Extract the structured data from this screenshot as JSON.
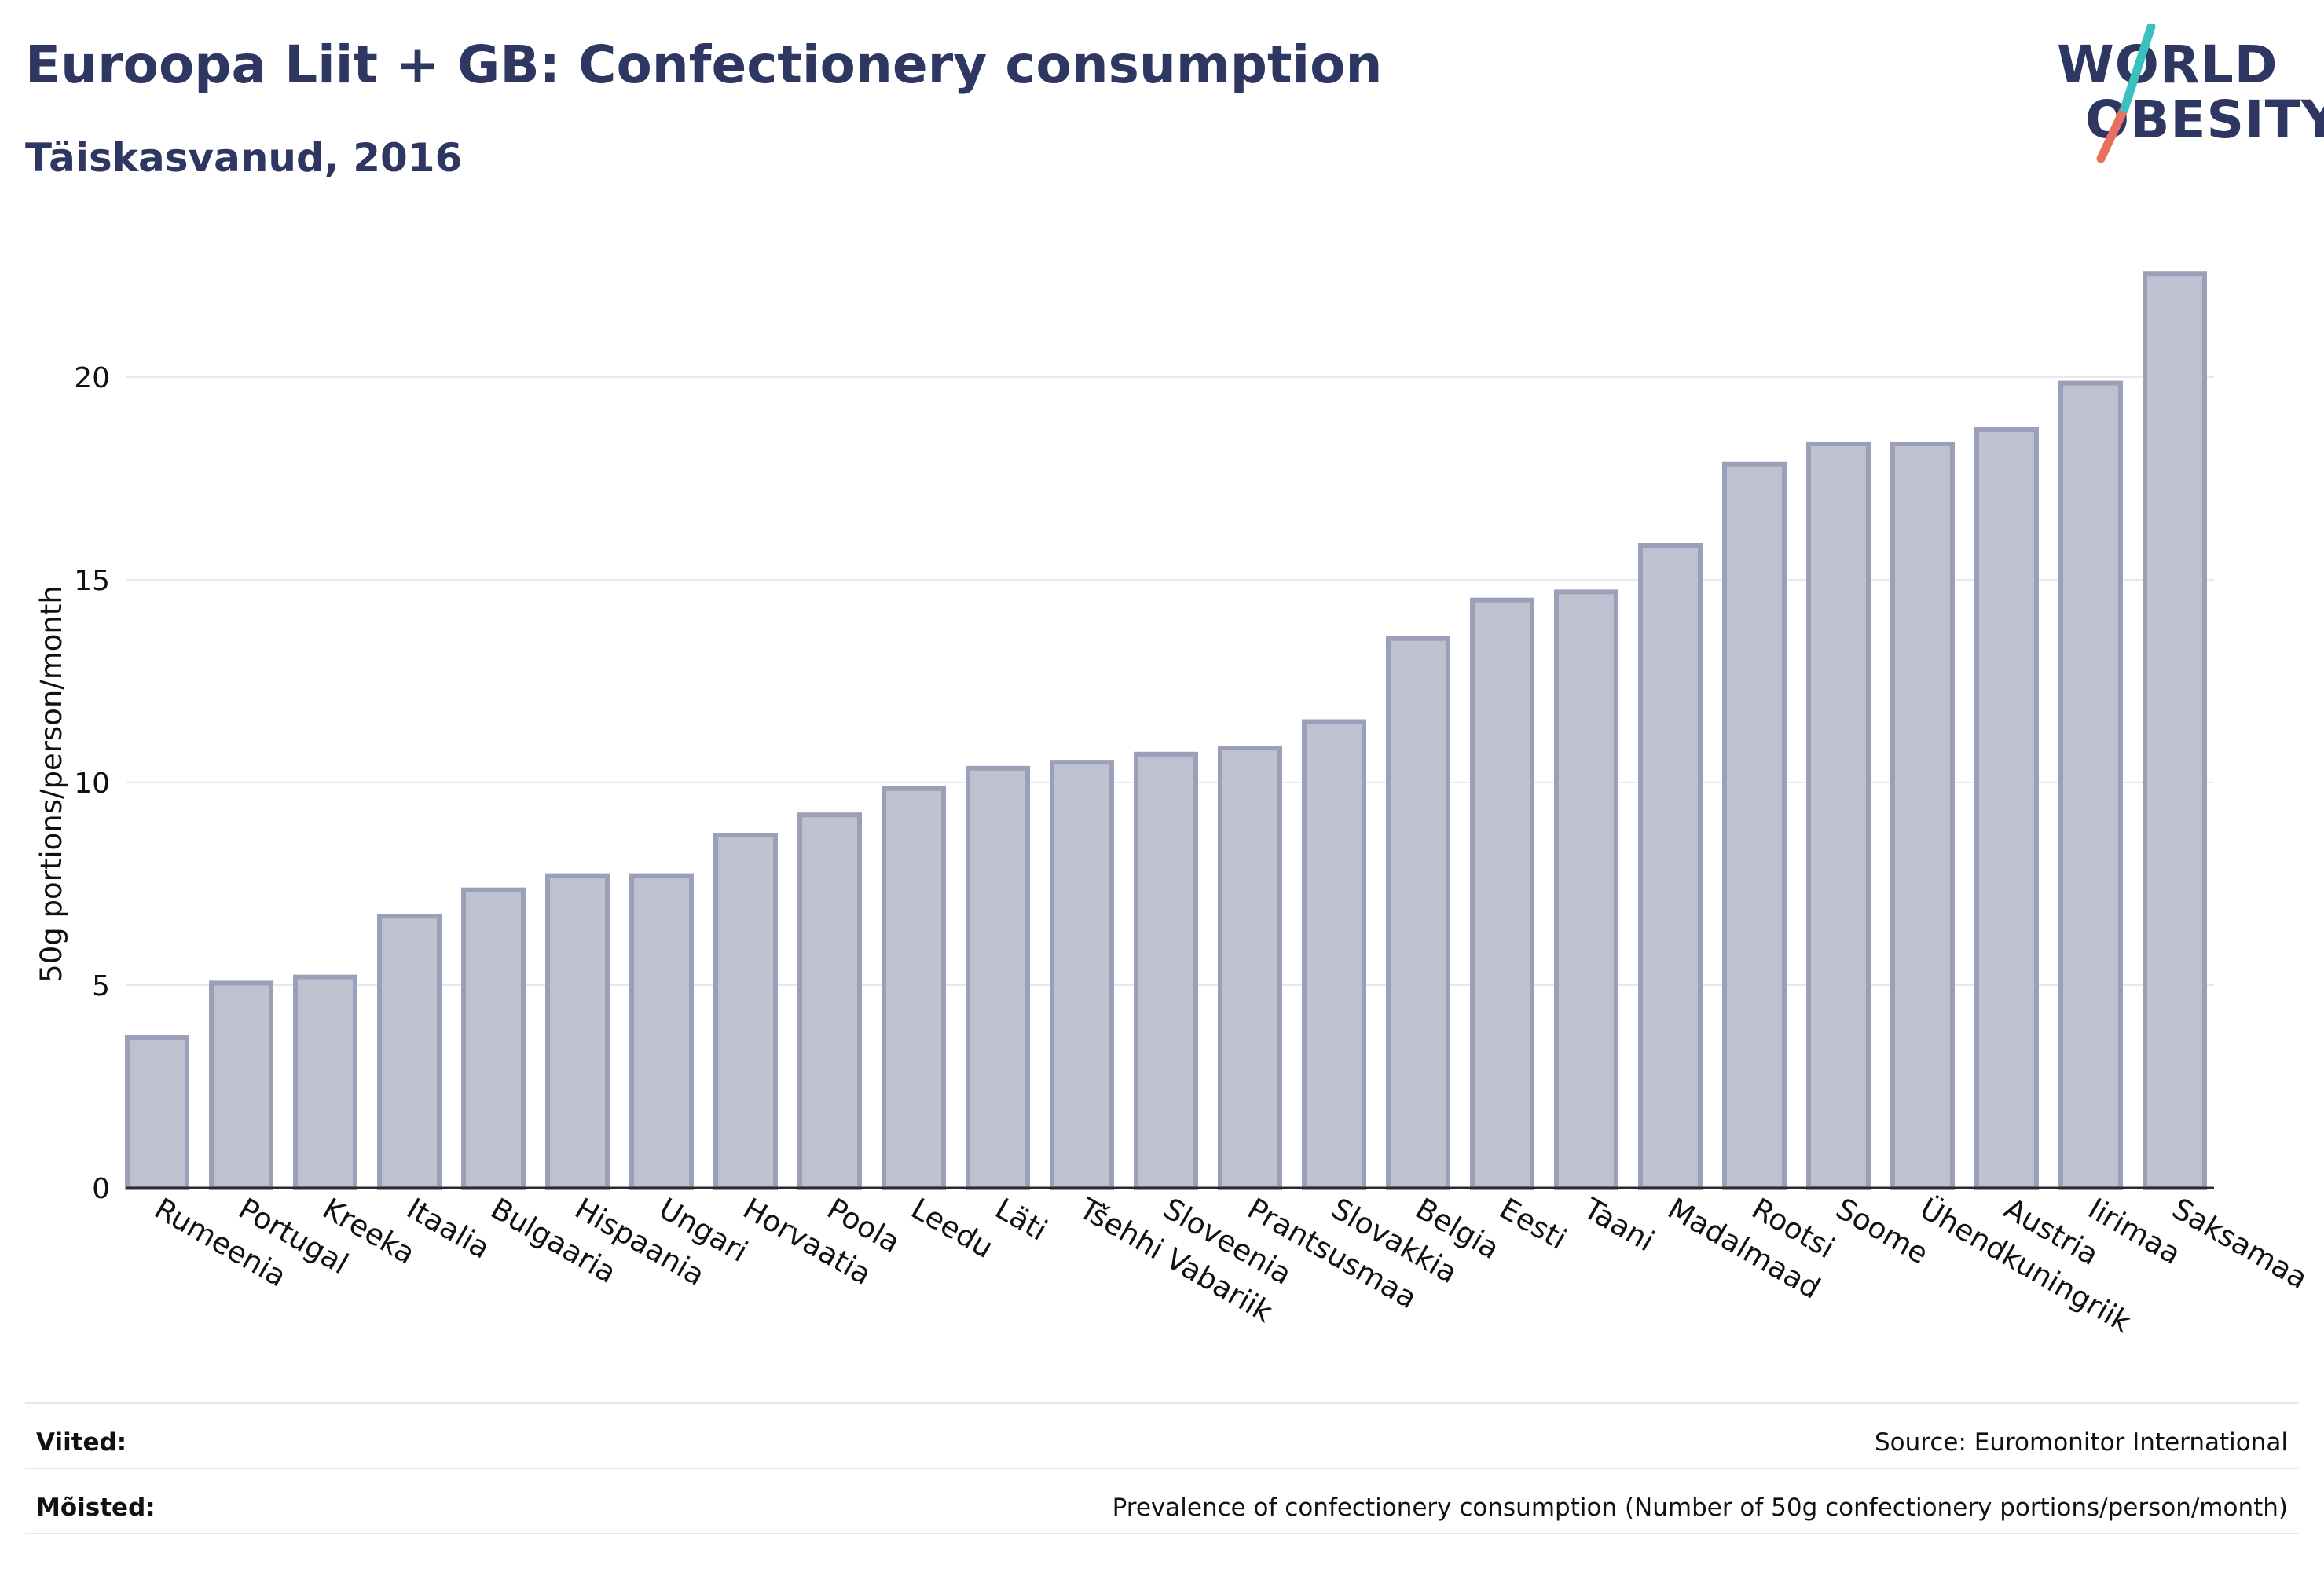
{
  "header": {
    "title": "Euroopa Liit + GB: Confectionery consumption",
    "subtitle": "Täiskasvanud, 2016"
  },
  "logo": {
    "line1": "WORLD",
    "line2": "OBESITY",
    "accent_teal": "#3bbfbf",
    "accent_coral": "#e8705e",
    "text_color": "#2e3662"
  },
  "chart_data": {
    "type": "bar",
    "title": "Euroopa Liit + GB: Confectionery consumption",
    "subtitle": "Täiskasvanud, 2016",
    "xlabel": "",
    "ylabel": "50g portions/person/month",
    "ylim": [
      0,
      23
    ],
    "yticks": [
      0,
      5,
      10,
      15,
      20
    ],
    "grid": true,
    "bar_fill": "#bec1cf",
    "bar_stroke": "#9ba0b8",
    "categories": [
      "Rumeenia",
      "Portugal",
      "Kreeka",
      "Itaalia",
      "Bulgaaria",
      "Hispaania",
      "Ungari",
      "Horvaatia",
      "Poola",
      "Leedu",
      "Läti",
      "Tšehhi Vabariik",
      "Sloveenia",
      "Prantsusmaa",
      "Slovakkia",
      "Belgia",
      "Eesti",
      "Taani",
      "Madalmaad",
      "Rootsi",
      "Soome",
      "Ühendkuningriik",
      "Austria",
      "Iirimaa",
      "Saksamaa"
    ],
    "values": [
      3.7,
      5.05,
      5.2,
      6.7,
      7.35,
      7.7,
      7.7,
      8.7,
      9.2,
      9.85,
      10.35,
      10.5,
      10.7,
      10.85,
      11.5,
      13.55,
      14.5,
      14.7,
      15.85,
      17.85,
      18.35,
      18.35,
      18.7,
      19.85,
      22.55
    ]
  },
  "footer": {
    "references_label": "Viited:",
    "references_value": "Source: Euromonitor International",
    "definitions_label": "Mõisted:",
    "definitions_value": "Prevalence of confectionery consumption (Number of 50g confectionery portions/person/month)"
  }
}
